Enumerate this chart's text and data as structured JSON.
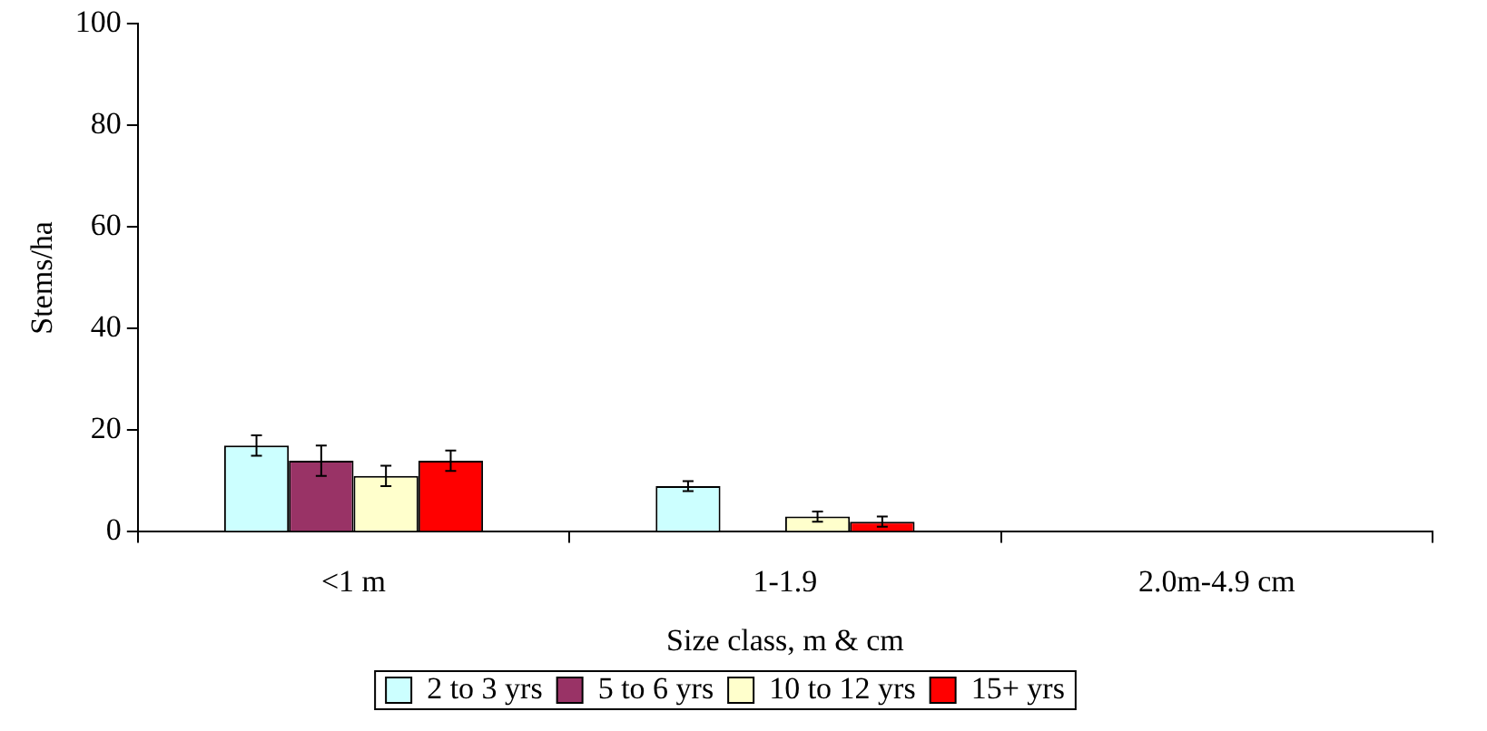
{
  "chart_data": {
    "type": "bar",
    "xlabel": "Size class, m & cm",
    "ylabel": "Stems/ha",
    "categories": [
      "<1 m",
      "1-1.9",
      "2.0m-4.9 cm"
    ],
    "series": [
      {
        "name": "2 to 3 yrs",
        "color": "#ccffff",
        "values": [
          17,
          9,
          0
        ],
        "errors": [
          2,
          1,
          null
        ]
      },
      {
        "name": "5 to 6 yrs",
        "color": "#993366",
        "values": [
          14,
          0,
          0
        ],
        "errors": [
          3,
          null,
          null
        ]
      },
      {
        "name": "10 to 12 yrs",
        "color": "#ffffcc",
        "values": [
          11,
          3,
          0
        ],
        "errors": [
          2,
          1,
          null
        ]
      },
      {
        "name": "15+ yrs",
        "color": "#ff0000",
        "values": [
          14,
          2,
          0
        ],
        "errors": [
          2,
          1,
          null
        ]
      }
    ],
    "ylim": [
      0,
      100
    ],
    "yticks": [
      0,
      20,
      40,
      60,
      80,
      100
    ],
    "grid": false,
    "legend": "bottom"
  }
}
